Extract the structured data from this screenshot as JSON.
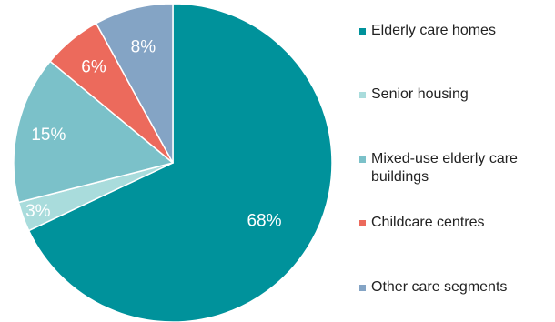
{
  "chart_data": {
    "type": "pie",
    "categories": [
      "Elderly care homes",
      "Senior housing",
      "Mixed-use elderly care buildings",
      "Childcare centres",
      "Other care segments"
    ],
    "values": [
      68,
      3,
      15,
      6,
      8
    ],
    "data_labels": [
      "68%",
      "3%",
      "15%",
      "6%",
      "8%"
    ],
    "colors": [
      "#00929b",
      "#a9dcdc",
      "#7bc1c9",
      "#ec6a5c",
      "#84a4c5"
    ],
    "start_angle": "12 o'clock",
    "direction": "clockwise",
    "legend_position": "right"
  },
  "legend": {
    "items": [
      {
        "label": "Elderly care homes",
        "color": "#00929b",
        "icon": "square-swatch"
      },
      {
        "label": "Senior housing",
        "color": "#a9dcdc",
        "icon": "square-swatch"
      },
      {
        "label": "Mixed-use elderly care buildings",
        "color": "#7bc1c9",
        "icon": "square-swatch"
      },
      {
        "label": "Childcare centres",
        "color": "#ec6a5c",
        "icon": "square-swatch"
      },
      {
        "label": "Other care segments",
        "color": "#84a4c5",
        "icon": "square-swatch"
      }
    ]
  }
}
